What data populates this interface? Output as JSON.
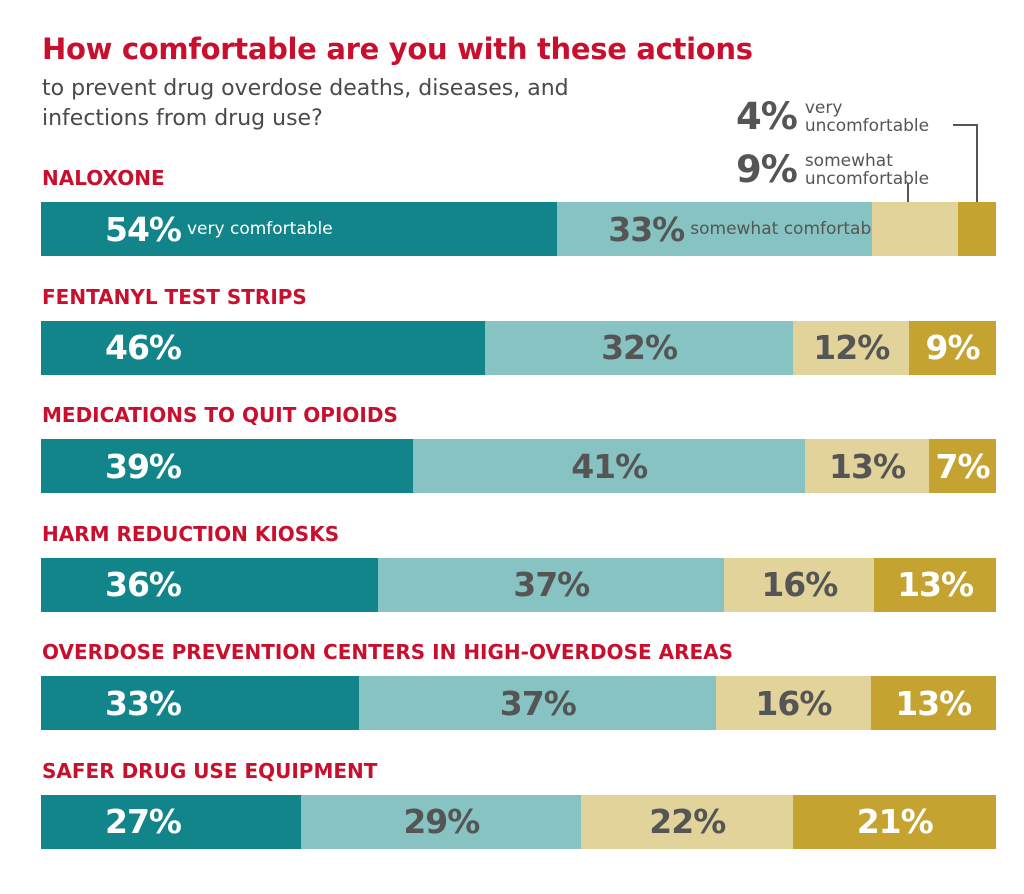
{
  "title": "How comfortable are you with these actions",
  "subtitle": "to prevent drug overdose deaths, diseases, and infections from drug use?",
  "colors": {
    "very_comfortable": "#12858a",
    "somewhat_comfortable": "#86c3c2",
    "somewhat_uncomfortable": "#e2d39b",
    "very_uncomfortable": "#c4a331",
    "title": "#c8102e"
  },
  "legend": {
    "very_uncomfortable": {
      "pct": "4%",
      "label": "very uncomfortable"
    },
    "somewhat_uncomfortable": {
      "pct": "9%",
      "label": "somewhat uncomfortable"
    }
  },
  "chart_data": {
    "type": "bar",
    "stacked": true,
    "orientation": "horizontal",
    "title": "How comfortable are you with these actions",
    "subtitle": "to prevent drug overdose deaths, diseases, and infections from drug use?",
    "categories": [
      "NALOXONE",
      "FENTANYL TEST STRIPS",
      "MEDICATIONS TO QUIT OPIOIDS",
      "HARM REDUCTION KIOSKS",
      "OVERDOSE PREVENTION CENTERS IN HIGH-OVERDOSE AREAS",
      "SAFER DRUG USE EQUIPMENT"
    ],
    "series": [
      {
        "name": "very comfortable",
        "values": [
          54,
          46,
          39,
          36,
          33,
          27
        ]
      },
      {
        "name": "somewhat comfortable",
        "values": [
          33,
          32,
          41,
          37,
          37,
          29
        ]
      },
      {
        "name": "somewhat uncomfortable",
        "values": [
          9,
          12,
          13,
          16,
          16,
          22
        ]
      },
      {
        "name": "very uncomfortable",
        "values": [
          4,
          9,
          7,
          13,
          13,
          21
        ]
      }
    ],
    "first_row_labels": [
      "very comfortable",
      "somewhat comfortable"
    ],
    "unit": "%"
  }
}
